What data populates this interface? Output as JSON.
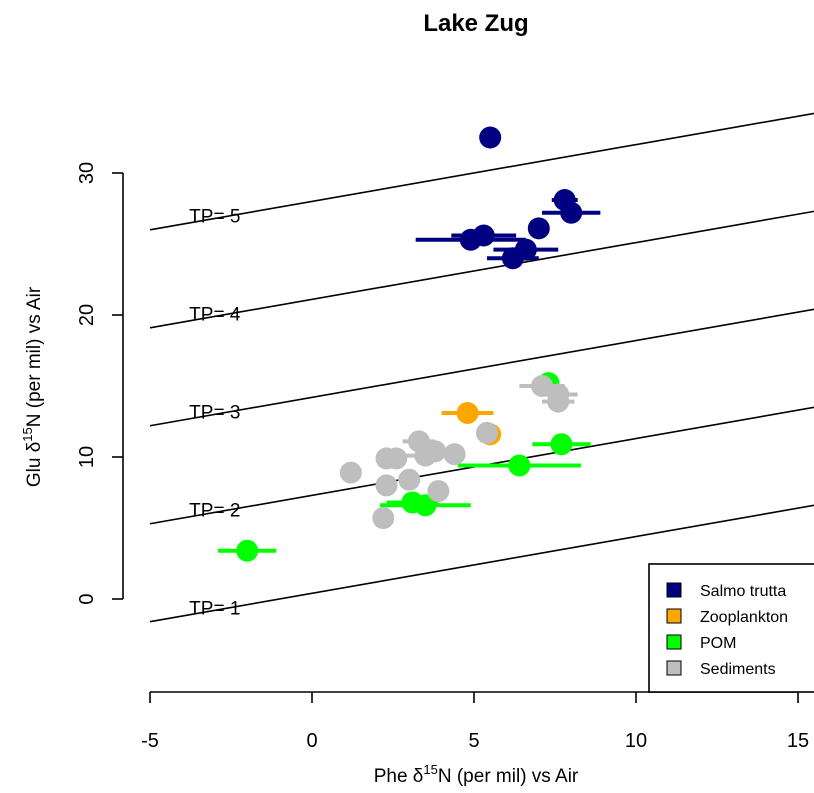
{
  "chart_data": {
    "type": "scatter",
    "title": "Lake Zug",
    "xlabel": "Phe δ15N (per mil) vs Air",
    "ylabel": "Glu δ15N (per mil) vs Air",
    "xlabel_parts": {
      "pre": "Phe δ",
      "sup": "15",
      "post": "N (per mil) vs Air"
    },
    "ylabel_parts": {
      "pre": "Glu δ",
      "sup": "15",
      "post": "N (per mil) vs Air"
    },
    "xlim": [
      -5,
      15
    ],
    "ylim": [
      0,
      30
    ],
    "x_ticks": [
      -5,
      0,
      5,
      10,
      15
    ],
    "y_ticks": [
      0,
      10,
      20,
      30
    ],
    "x_tick_labels": [
      "-5",
      "0",
      "5",
      "10",
      "15"
    ],
    "y_tick_labels": [
      "0",
      "10",
      "20",
      "30"
    ],
    "grid": false,
    "legend_position": "bottom-right",
    "trophic_lines": {
      "slope": 0.4,
      "lines": [
        {
          "label": "TP= 1",
          "intercept": 0.4,
          "label_x": -3,
          "label_y": -0.6
        },
        {
          "label": "TP= 2",
          "intercept": 7.3,
          "label_x": -3,
          "label_y": 6.3
        },
        {
          "label": "TP= 3",
          "intercept": 14.2,
          "label_x": -3,
          "label_y": 13.2
        },
        {
          "label": "TP= 4",
          "intercept": 21.1,
          "label_x": -3,
          "label_y": 20.1
        },
        {
          "label": "TP= 5",
          "intercept": 28.0,
          "label_x": -3,
          "label_y": 27.0
        }
      ]
    },
    "series": [
      {
        "name": "Salmo trutta",
        "color": "#000080",
        "points": [
          {
            "x": 5.5,
            "y": 32.5,
            "xerr": 0,
            "yerr": 0
          },
          {
            "x": 7.8,
            "y": 28.1,
            "xerr": 0.4,
            "yerr": 0.5
          },
          {
            "x": 8.0,
            "y": 27.2,
            "xerr": 0.9,
            "yerr": 0
          },
          {
            "x": 7.0,
            "y": 26.1,
            "xerr": 0.3,
            "yerr": 0
          },
          {
            "x": 5.3,
            "y": 25.6,
            "xerr": 1.0,
            "yerr": 0
          },
          {
            "x": 4.9,
            "y": 25.3,
            "xerr": 1.7,
            "yerr": 0.5
          },
          {
            "x": 6.6,
            "y": 24.6,
            "xerr": 1.0,
            "yerr": 0
          },
          {
            "x": 6.2,
            "y": 24.0,
            "xerr": 0.8,
            "yerr": 0
          }
        ]
      },
      {
        "name": "Zooplankton",
        "color": "#ffa500",
        "points": [
          {
            "x": 4.8,
            "y": 13.1,
            "xerr": 0.8,
            "yerr": 0
          },
          {
            "x": 5.5,
            "y": 11.6,
            "xerr": 0.3,
            "yerr": 0.3
          }
        ]
      },
      {
        "name": "POM",
        "color": "#00ff00",
        "points": [
          {
            "x": -2.0,
            "y": 3.4,
            "xerr": 0.9,
            "yerr": 0
          },
          {
            "x": 3.1,
            "y": 6.8,
            "xerr": 0.8,
            "yerr": 0
          },
          {
            "x": 3.5,
            "y": 6.6,
            "xerr": 1.4,
            "yerr": 0
          },
          {
            "x": 6.4,
            "y": 9.4,
            "xerr": 1.9,
            "yerr": 0
          },
          {
            "x": 7.7,
            "y": 10.9,
            "xerr": 0.9,
            "yerr": 0
          },
          {
            "x": 7.3,
            "y": 15.2,
            "xerr": 0,
            "yerr": 0.5
          }
        ]
      },
      {
        "name": "Sediments",
        "color": "#bebebe",
        "points": [
          {
            "x": 1.2,
            "y": 8.9,
            "xerr": 0,
            "yerr": 0
          },
          {
            "x": 2.2,
            "y": 5.7,
            "xerr": 0,
            "yerr": 0
          },
          {
            "x": 2.3,
            "y": 8.0,
            "xerr": 0,
            "yerr": 0
          },
          {
            "x": 2.3,
            "y": 9.9,
            "xerr": 0,
            "yerr": 0
          },
          {
            "x": 2.6,
            "y": 9.9,
            "xerr": 0,
            "yerr": 0
          },
          {
            "x": 3.0,
            "y": 8.4,
            "xerr": 0,
            "yerr": 0
          },
          {
            "x": 3.3,
            "y": 11.1,
            "xerr": 0.5,
            "yerr": 0
          },
          {
            "x": 3.5,
            "y": 10.1,
            "xerr": 0.7,
            "yerr": 0
          },
          {
            "x": 3.8,
            "y": 10.4,
            "xerr": 0.6,
            "yerr": 0
          },
          {
            "x": 3.9,
            "y": 7.6,
            "xerr": 0,
            "yerr": 0
          },
          {
            "x": 4.4,
            "y": 10.2,
            "xerr": 0,
            "yerr": 0
          },
          {
            "x": 5.4,
            "y": 11.7,
            "xerr": 0,
            "yerr": 0
          },
          {
            "x": 7.1,
            "y": 15.0,
            "xerr": 0.7,
            "yerr": 0
          },
          {
            "x": 7.6,
            "y": 14.4,
            "xerr": 0.6,
            "yerr": 0
          },
          {
            "x": 7.6,
            "y": 13.9,
            "xerr": 0.5,
            "yerr": 0
          }
        ]
      }
    ]
  }
}
